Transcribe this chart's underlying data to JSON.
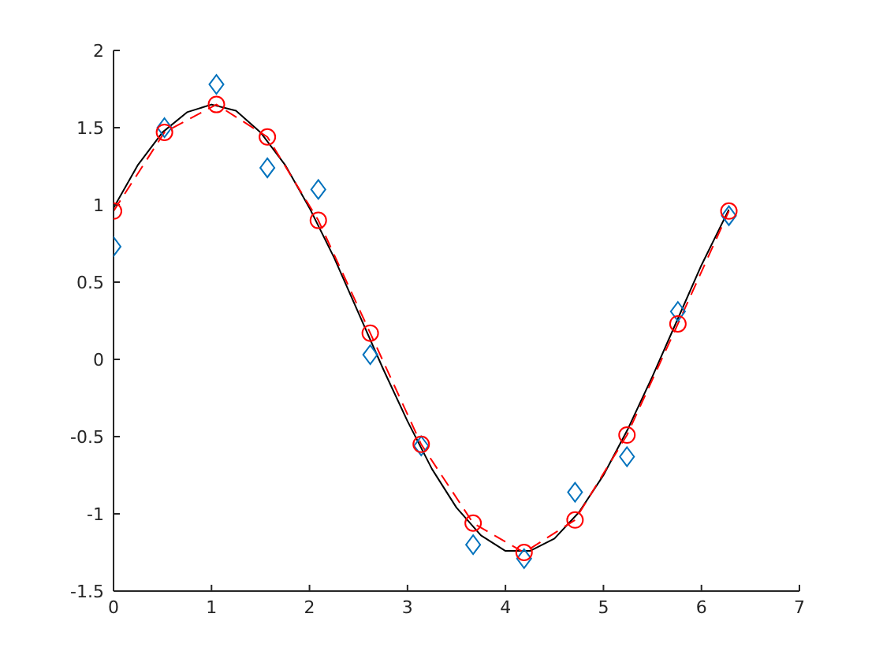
{
  "chart_data": {
    "type": "line",
    "xlim": [
      0,
      7
    ],
    "xticks": [
      0,
      1,
      2,
      3,
      4,
      5,
      6,
      7
    ],
    "ylim": [
      -1.5,
      2
    ],
    "yticks": [
      -1.5,
      -1,
      -0.5,
      0,
      0.5,
      1,
      1.5,
      2
    ],
    "grid": false,
    "legend": false,
    "series": [
      {
        "color": "#000000",
        "marker": "none",
        "line_style": "solid",
        "x": [
          0,
          0.25,
          0.5,
          0.75,
          1,
          1.25,
          1.5,
          1.75,
          2,
          2.25,
          2.5,
          2.75,
          3,
          3.25,
          3.5,
          3.75,
          4,
          4.25,
          4.5,
          4.75,
          5,
          5.25,
          5.5,
          5.75,
          6,
          6.28
        ],
        "values": [
          0.98,
          1.26,
          1.47,
          1.6,
          1.65,
          1.61,
          1.47,
          1.26,
          0.98,
          0.66,
          0.3,
          -0.06,
          -0.4,
          -0.71,
          -0.96,
          -1.14,
          -1.24,
          -1.24,
          -1.16,
          -0.99,
          -0.75,
          -0.45,
          -0.11,
          0.25,
          0.61,
          0.97
        ]
      },
      {
        "type": "scatter",
        "color": "#0072bd",
        "marker": "diamond",
        "x": [
          0,
          0.52,
          1.05,
          1.57,
          2.09,
          2.62,
          3.14,
          3.67,
          4.19,
          4.71,
          5.24,
          5.76,
          6.28
        ],
        "values": [
          0.73,
          1.5,
          1.78,
          1.24,
          1.1,
          0.03,
          -0.56,
          -1.2,
          -1.29,
          -0.86,
          -0.63,
          0.31,
          0.93
        ]
      },
      {
        "color": "#ff0000",
        "marker": "circle",
        "line_style": "dashed",
        "x": [
          0,
          0.52,
          1.05,
          1.57,
          2.09,
          2.62,
          3.14,
          3.67,
          4.19,
          4.71,
          5.24,
          5.76,
          6.28
        ],
        "values": [
          0.96,
          1.47,
          1.65,
          1.44,
          0.9,
          0.17,
          -0.55,
          -1.06,
          -1.25,
          -1.04,
          -0.49,
          0.23,
          0.96
        ]
      }
    ]
  }
}
